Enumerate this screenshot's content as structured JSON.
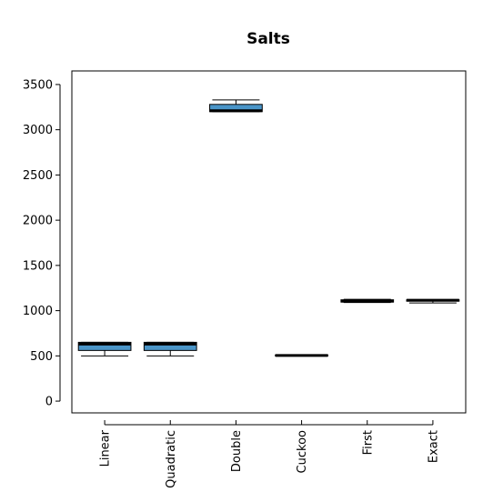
{
  "chart_data": {
    "type": "box",
    "title": "Salts",
    "xlabel": "",
    "ylabel": "",
    "ylim": [
      -130,
      3650
    ],
    "yticks": [
      0,
      500,
      1000,
      1500,
      2000,
      2500,
      3000,
      3500
    ],
    "categories": [
      "Linear",
      "Quadratic",
      "Double",
      "Cuckoo",
      "First",
      "Exact"
    ],
    "boxes": [
      {
        "min": 500,
        "q1": 560,
        "median": 630,
        "q3": 650,
        "max": 650
      },
      {
        "min": 500,
        "q1": 560,
        "median": 630,
        "q3": 650,
        "max": 650
      },
      {
        "min": 3200,
        "q1": 3200,
        "median": 3210,
        "q3": 3280,
        "max": 3330
      },
      {
        "min": 500,
        "q1": 500,
        "median": 505,
        "q3": 510,
        "max": 510
      },
      {
        "min": 1090,
        "q1": 1095,
        "median": 1105,
        "q3": 1120,
        "max": 1125
      },
      {
        "min": 1085,
        "q1": 1105,
        "median": 1115,
        "q3": 1120,
        "max": 1120
      }
    ],
    "box_fill": "#4a95c8",
    "grid": false,
    "legend": "none"
  }
}
